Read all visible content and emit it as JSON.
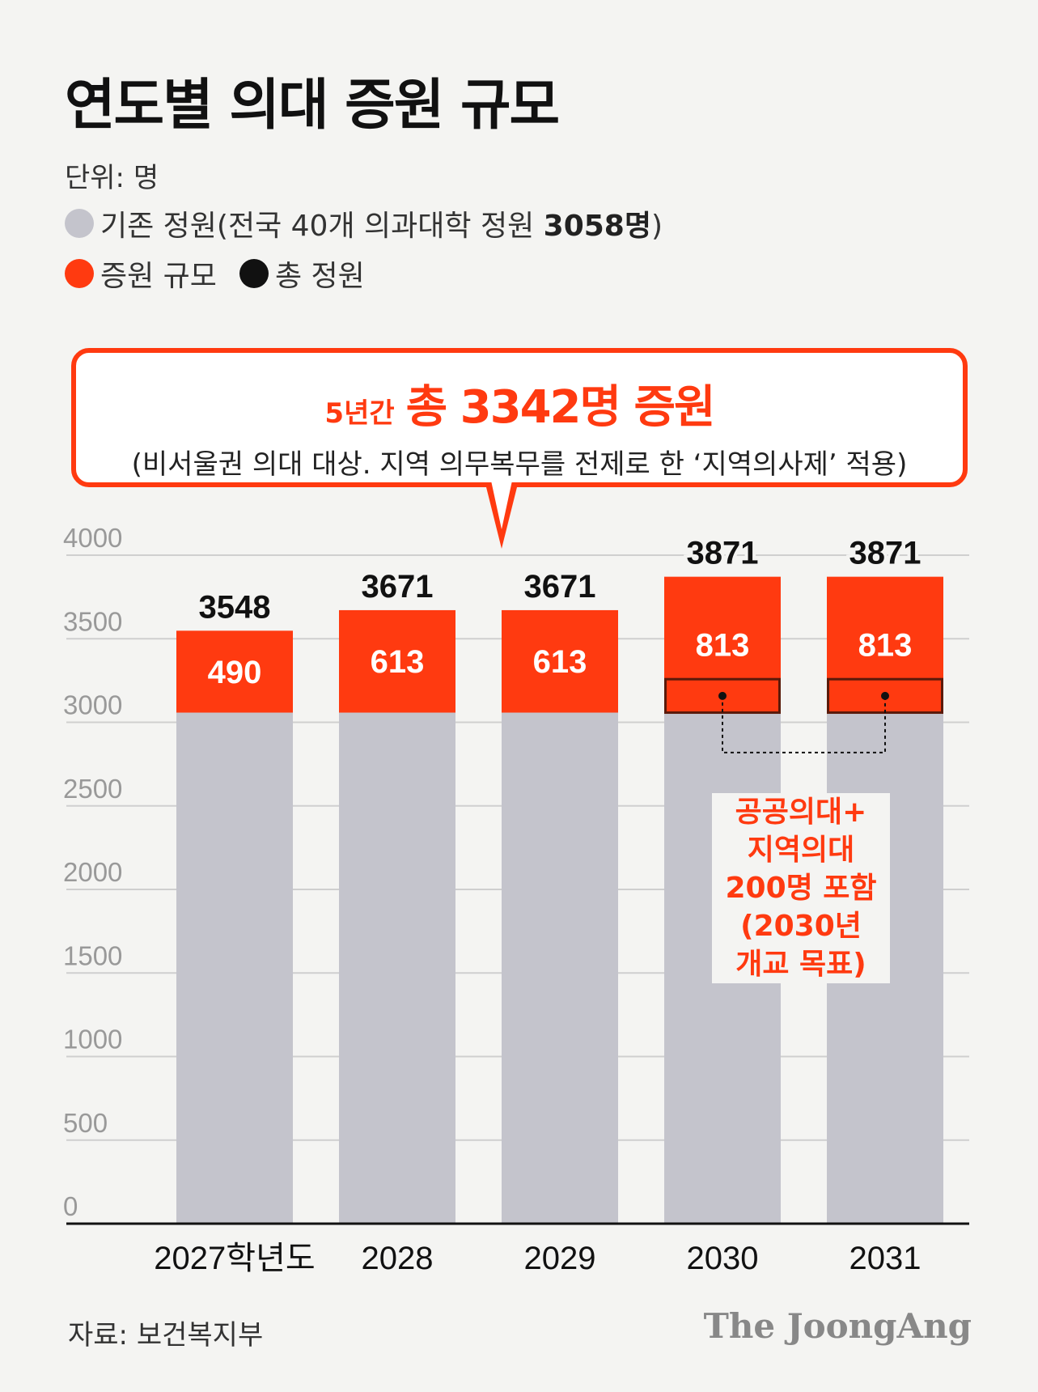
{
  "title": "연도별 의대 증원 규모",
  "unit_label": "단위: 명",
  "legend": {
    "existing_label": "기존 정원(전국 40개 의과대학 정원 ",
    "existing_bold": "3058명",
    "existing_close": ")",
    "increase_label": "증원 규모",
    "total_label": "총 정원"
  },
  "callout": {
    "prefix": "5년간",
    "headline": "총 3342명 증원",
    "subtitle": "(비서울권 의대 대상. 지역 의무복무를 전제로 한 ‘지역의사제’ 적용)"
  },
  "note_lines": [
    "공공의대+",
    "지역의대",
    "200명 포함",
    "(2030년",
    "개교 목표)"
  ],
  "source": "자료: 보건복지부",
  "brand": "The JoongAng",
  "colors": {
    "existing": "#c4c4cc",
    "increase": "#ff3a10",
    "total": "#111111",
    "grid": "#cfcfcf"
  },
  "chart_data": {
    "type": "bar",
    "stacked": true,
    "categories": [
      "2027학년도",
      "2028",
      "2029",
      "2030",
      "2031"
    ],
    "series": [
      {
        "name": "기존 정원",
        "values": [
          3058,
          3058,
          3058,
          3058,
          3058
        ]
      },
      {
        "name": "증원 규모",
        "values": [
          490,
          613,
          613,
          813,
          813
        ]
      }
    ],
    "totals": [
      3548,
      3671,
      3671,
      3871,
      3871
    ],
    "highlight_subportion": {
      "categories": [
        "2030",
        "2031"
      ],
      "value": 200
    },
    "ylim": [
      0,
      4000
    ],
    "yticks": [
      0,
      500,
      1000,
      1500,
      2000,
      2500,
      3000,
      3500,
      4000
    ],
    "grid": true
  }
}
